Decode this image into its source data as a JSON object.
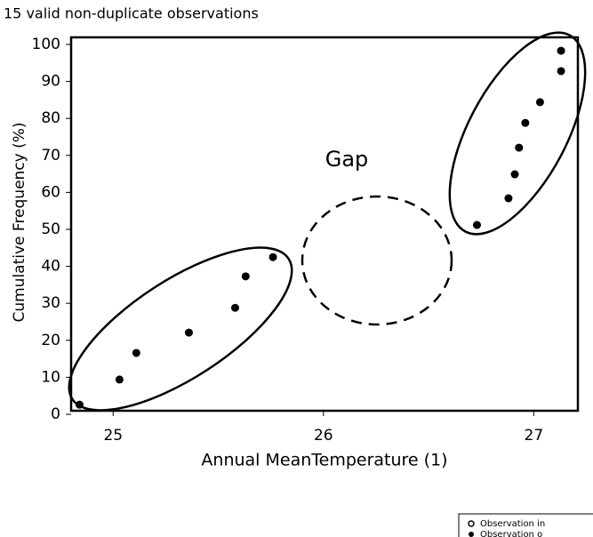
{
  "chart_data": {
    "type": "scatter",
    "title": "15 valid non-duplicate observations",
    "x_label": "Annual MeanTemperature (1)",
    "y_label": "Cumulative Frequency (%)",
    "annotation": "Gap",
    "x": [
      24.84,
      25.03,
      25.11,
      25.36,
      25.58,
      25.63,
      25.76,
      26.73,
      26.88,
      26.91,
      26.93,
      26.96,
      27.03,
      27.13,
      27.13
    ],
    "values": [
      2.6,
      9.4,
      16.6,
      22.1,
      28.8,
      37.3,
      42.5,
      51.2,
      58.4,
      64.9,
      72.1,
      78.8,
      84.4,
      92.8,
      98.3
    ],
    "color": "#000000",
    "xlim": [
      24.8,
      27.21
    ],
    "xticks": [
      25,
      26,
      27
    ],
    "ylim": [
      0,
      100
    ],
    "yticks": [
      0,
      10,
      20,
      30,
      40,
      50,
      60,
      70,
      80,
      90,
      100
    ],
    "legend": [
      "Observation in",
      "Observation o"
    ]
  }
}
